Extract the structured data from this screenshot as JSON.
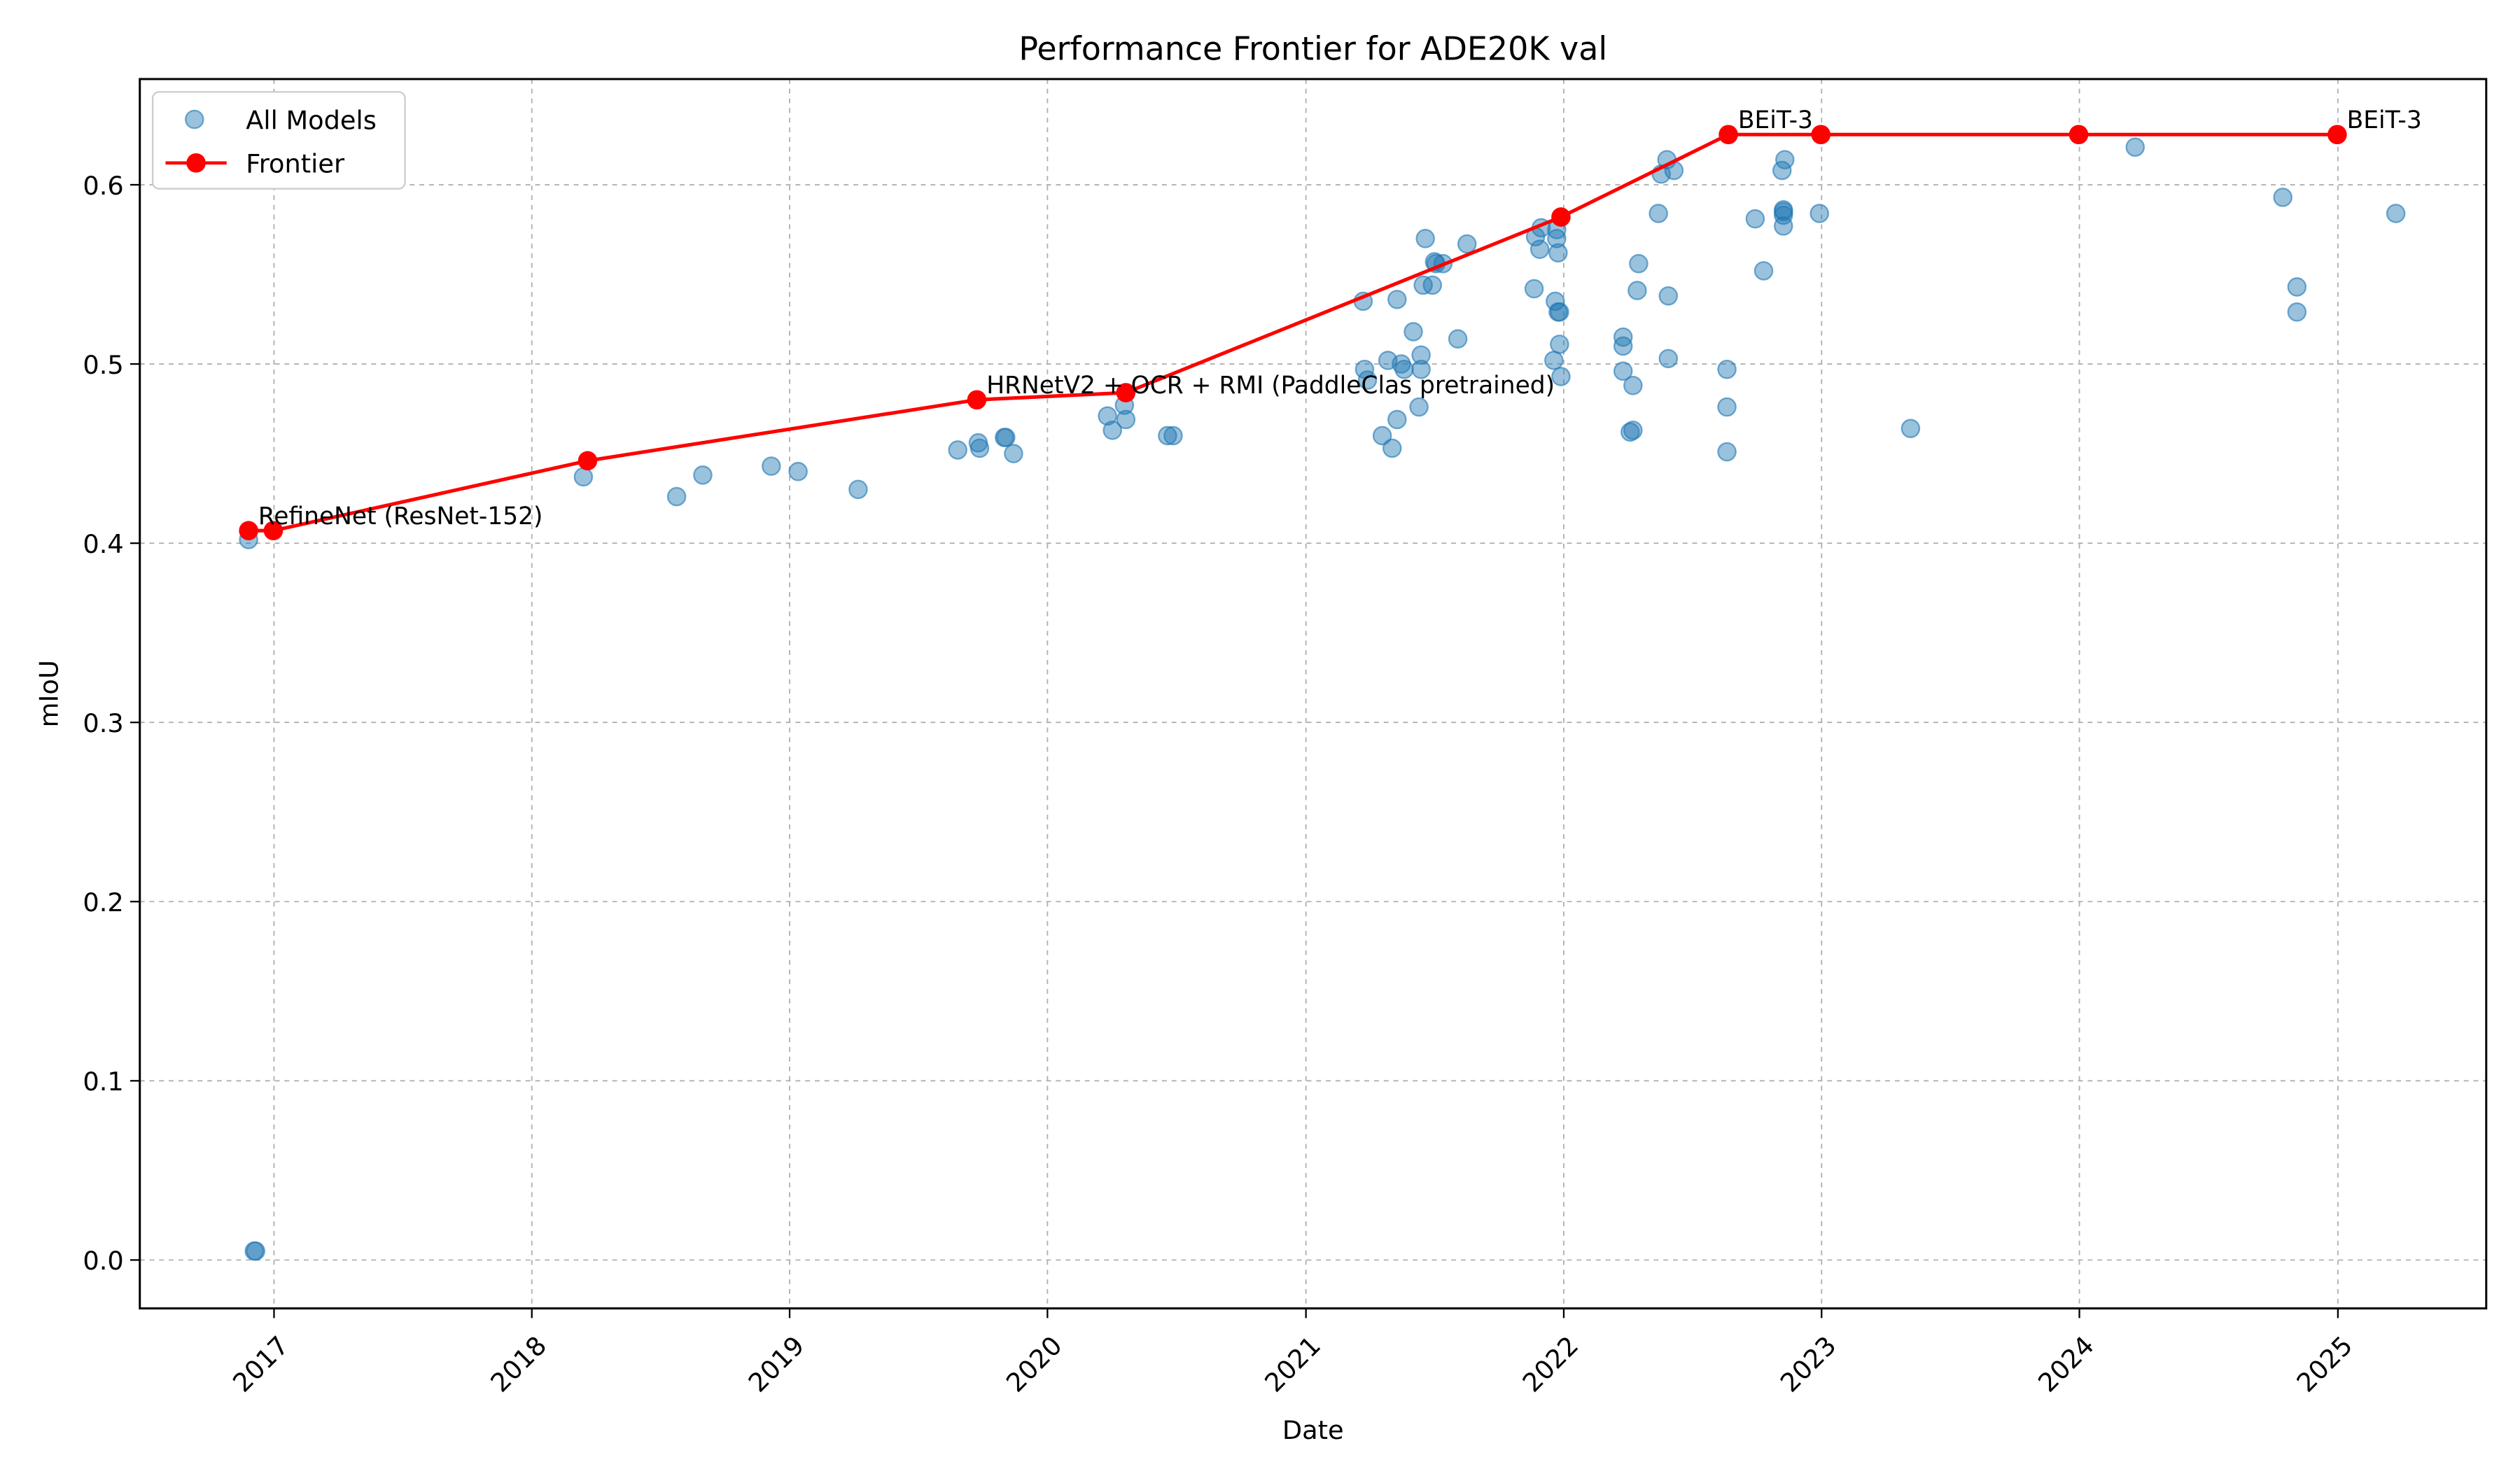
{
  "chart_data": {
    "type": "scatter",
    "title": "Performance Frontier for ADE20K val",
    "xlabel": "Date",
    "ylabel": "mIoU",
    "xlim": [
      "2016-06-25",
      "2025-07-30"
    ],
    "ylim": [
      -0.027,
      0.659
    ],
    "x_ticks": [
      "2017",
      "2018",
      "2019",
      "2020",
      "2021",
      "2022",
      "2023",
      "2024",
      "2025"
    ],
    "y_ticks": [
      "0.0",
      "0.1",
      "0.2",
      "0.3",
      "0.4",
      "0.5",
      "0.6"
    ],
    "grid": true,
    "legend_position": "top-left",
    "colors": {
      "scatter": "#1f77b4",
      "frontier": "#ff0000"
    },
    "series": [
      {
        "name": "All Models",
        "kind": "scatter",
        "points": [
          [
            "2016-11-26",
            0.402
          ],
          [
            "2016-12-04",
            0.005
          ],
          [
            "2016-12-06",
            0.005
          ],
          [
            "2018-03-15",
            0.437
          ],
          [
            "2018-07-25",
            0.426
          ],
          [
            "2018-08-31",
            0.438
          ],
          [
            "2018-12-06",
            0.443
          ],
          [
            "2019-01-13",
            0.44
          ],
          [
            "2019-04-08",
            0.43
          ],
          [
            "2019-08-27",
            0.452
          ],
          [
            "2019-09-25",
            0.456
          ],
          [
            "2019-09-27",
            0.453
          ],
          [
            "2019-11-01",
            0.459
          ],
          [
            "2019-11-03",
            0.459
          ],
          [
            "2019-11-14",
            0.45
          ],
          [
            "2020-03-26",
            0.471
          ],
          [
            "2020-04-02",
            0.463
          ],
          [
            "2020-04-21",
            0.469
          ],
          [
            "2020-04-19",
            0.477
          ],
          [
            "2020-06-19",
            0.46
          ],
          [
            "2020-06-27",
            0.46
          ],
          [
            "2021-03-23",
            0.535
          ],
          [
            "2021-03-25",
            0.497
          ],
          [
            "2021-03-29",
            0.491
          ],
          [
            "2021-04-19",
            0.46
          ],
          [
            "2021-04-27",
            0.502
          ],
          [
            "2021-05-03",
            0.453
          ],
          [
            "2021-05-10",
            0.469
          ],
          [
            "2021-05-10",
            0.536
          ],
          [
            "2021-05-16",
            0.5
          ],
          [
            "2021-05-20",
            0.497
          ],
          [
            "2021-06-02",
            0.518
          ],
          [
            "2021-06-10",
            0.476
          ],
          [
            "2021-06-13",
            0.505
          ],
          [
            "2021-06-13",
            0.497
          ],
          [
            "2021-06-16",
            0.544
          ],
          [
            "2021-06-19",
            0.57
          ],
          [
            "2021-06-29",
            0.544
          ],
          [
            "2021-07-02",
            0.557
          ],
          [
            "2021-07-04",
            0.556
          ],
          [
            "2021-07-14",
            0.556
          ],
          [
            "2021-08-04",
            0.514
          ],
          [
            "2021-08-17",
            0.567
          ],
          [
            "2021-11-20",
            0.542
          ],
          [
            "2021-11-22",
            0.571
          ],
          [
            "2021-11-28",
            0.564
          ],
          [
            "2021-11-30",
            0.576
          ],
          [
            "2021-12-20",
            0.535
          ],
          [
            "2021-12-22",
            0.57
          ],
          [
            "2021-12-22",
            0.575
          ],
          [
            "2021-12-24",
            0.562
          ],
          [
            "2021-12-24",
            0.529
          ],
          [
            "2021-12-26",
            0.529
          ],
          [
            "2021-12-18",
            0.502
          ],
          [
            "2021-12-26",
            0.511
          ],
          [
            "2021-12-28",
            0.493
          ],
          [
            "2022-03-26",
            0.496
          ],
          [
            "2022-03-26",
            0.51
          ],
          [
            "2022-03-26",
            0.515
          ],
          [
            "2022-04-05",
            0.462
          ],
          [
            "2022-04-09",
            0.463
          ],
          [
            "2022-04-09",
            0.488
          ],
          [
            "2022-04-15",
            0.541
          ],
          [
            "2022-04-17",
            0.556
          ],
          [
            "2022-05-15",
            0.584
          ],
          [
            "2022-05-19",
            0.606
          ],
          [
            "2022-05-27",
            0.614
          ],
          [
            "2022-05-29",
            0.538
          ],
          [
            "2022-05-29",
            0.503
          ],
          [
            "2022-06-06",
            0.608
          ],
          [
            "2022-08-20",
            0.497
          ],
          [
            "2022-08-20",
            0.476
          ],
          [
            "2022-08-20",
            0.451
          ],
          [
            "2022-09-29",
            0.581
          ],
          [
            "2022-10-11",
            0.552
          ],
          [
            "2022-11-06",
            0.608
          ],
          [
            "2022-11-10",
            0.614
          ],
          [
            "2022-11-08",
            0.577
          ],
          [
            "2022-11-08",
            0.583
          ],
          [
            "2022-11-08",
            0.585
          ],
          [
            "2022-11-08",
            0.586
          ],
          [
            "2022-12-29",
            0.584
          ],
          [
            "2023-05-07",
            0.464
          ],
          [
            "2024-03-20",
            0.621
          ],
          [
            "2024-10-15",
            0.593
          ],
          [
            "2024-11-04",
            0.543
          ],
          [
            "2024-11-04",
            0.529
          ],
          [
            "2025-03-24",
            0.584
          ]
        ]
      },
      {
        "name": "Frontier",
        "kind": "line",
        "points": [
          [
            "2016-11-26",
            0.407
          ],
          [
            "2016-12-31",
            0.407
          ],
          [
            "2018-03-21",
            0.446
          ],
          [
            "2019-09-23",
            0.48
          ],
          [
            "2020-04-21",
            0.484
          ],
          [
            "2021-12-28",
            0.582
          ],
          [
            "2022-08-22",
            0.628
          ],
          [
            "2022-12-31",
            0.628
          ],
          [
            "2023-12-31",
            0.628
          ],
          [
            "2024-12-31",
            0.628
          ]
        ]
      }
    ],
    "annotations": [
      {
        "text": "RefineNet (ResNet-152)",
        "x": "2016-11-26",
        "y": 0.407
      },
      {
        "text": "HRNetV2 + OCR + RMI (PaddleClas pretrained)",
        "x": "2019-09-23",
        "y": 0.48
      },
      {
        "text": "BEiT-3",
        "x": "2022-08-22",
        "y": 0.628
      },
      {
        "text": "BEiT-3",
        "x": "2024-12-31",
        "y": 0.628
      }
    ]
  }
}
